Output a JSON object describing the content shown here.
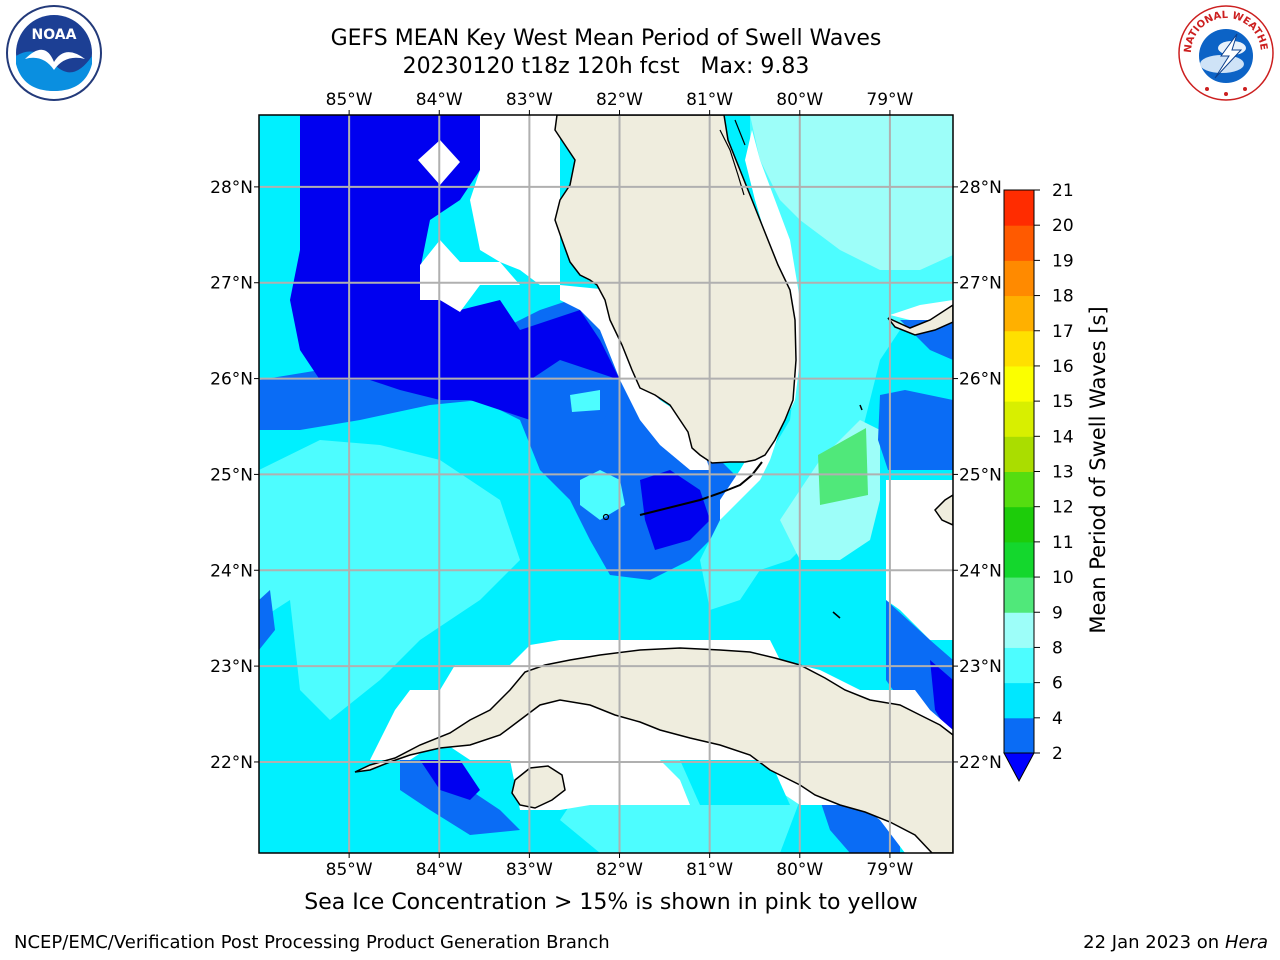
{
  "title": {
    "line1": "GEFS MEAN Key West Mean Period of Swell Waves",
    "line2": "20230120 t18z 120h fcst   Max: 9.83"
  },
  "map": {
    "lon_range": [
      -86,
      -78.3
    ],
    "lat_range": [
      21.05,
      28.75
    ],
    "lon_ticks": [
      "85°W",
      "84°W",
      "83°W",
      "82°W",
      "81°W",
      "80°W",
      "79°W"
    ],
    "lon_values": [
      -85,
      -84,
      -83,
      -82,
      -81,
      -80,
      -79
    ],
    "lat_ticks": [
      "22°N",
      "23°N",
      "24°N",
      "25°N",
      "26°N",
      "27°N",
      "28°N"
    ],
    "lat_values": [
      22,
      23,
      24,
      25,
      26,
      27,
      28
    ],
    "grid": true,
    "land_color": "#efedde",
    "ocean_no_data_color": "#ffffff"
  },
  "colorbar": {
    "label": "Mean Period of Swell Waves [s]",
    "ticks": [
      "2",
      "4",
      "6",
      "8",
      "9",
      "10",
      "11",
      "12",
      "13",
      "14",
      "15",
      "16",
      "17",
      "18",
      "19",
      "20",
      "21"
    ],
    "levels": [
      2,
      4,
      6,
      8,
      9,
      10,
      11,
      12,
      13,
      14,
      15,
      16,
      17,
      18,
      19,
      20,
      21
    ],
    "colors": [
      "#0a6cf5",
      "#00e7ff",
      "#4dfdff",
      "#9dfef9",
      "#50e87a",
      "#14d72d",
      "#1dcc0a",
      "#55dd10",
      "#aadd00",
      "#d8ef00",
      "#fbff00",
      "#ffe000",
      "#ffb000",
      "#ff8a00",
      "#ff5a00",
      "#ff2c00",
      "#ff0000"
    ],
    "under_color": "#0000ff"
  },
  "contour_colors": {
    "deep_blue": "#0000f0",
    "mid_blue": "#0a6cf5",
    "cyan": "#00f0ff",
    "light_cyan": "#4dfdff",
    "pale_cyan": "#9dfef9",
    "green": "#50e87a"
  },
  "logos": {
    "left_text": "NOAA",
    "right_text": "NATIONAL WEATHER SERVICE"
  },
  "seaice_note": "Sea Ice Concentration > 15% is shown in pink to yellow",
  "footer": {
    "left": "NCEP/EMC/Verification Post Processing Product Generation Branch",
    "right_date": "22 Jan 2023 on ",
    "right_machine": "Hera"
  }
}
